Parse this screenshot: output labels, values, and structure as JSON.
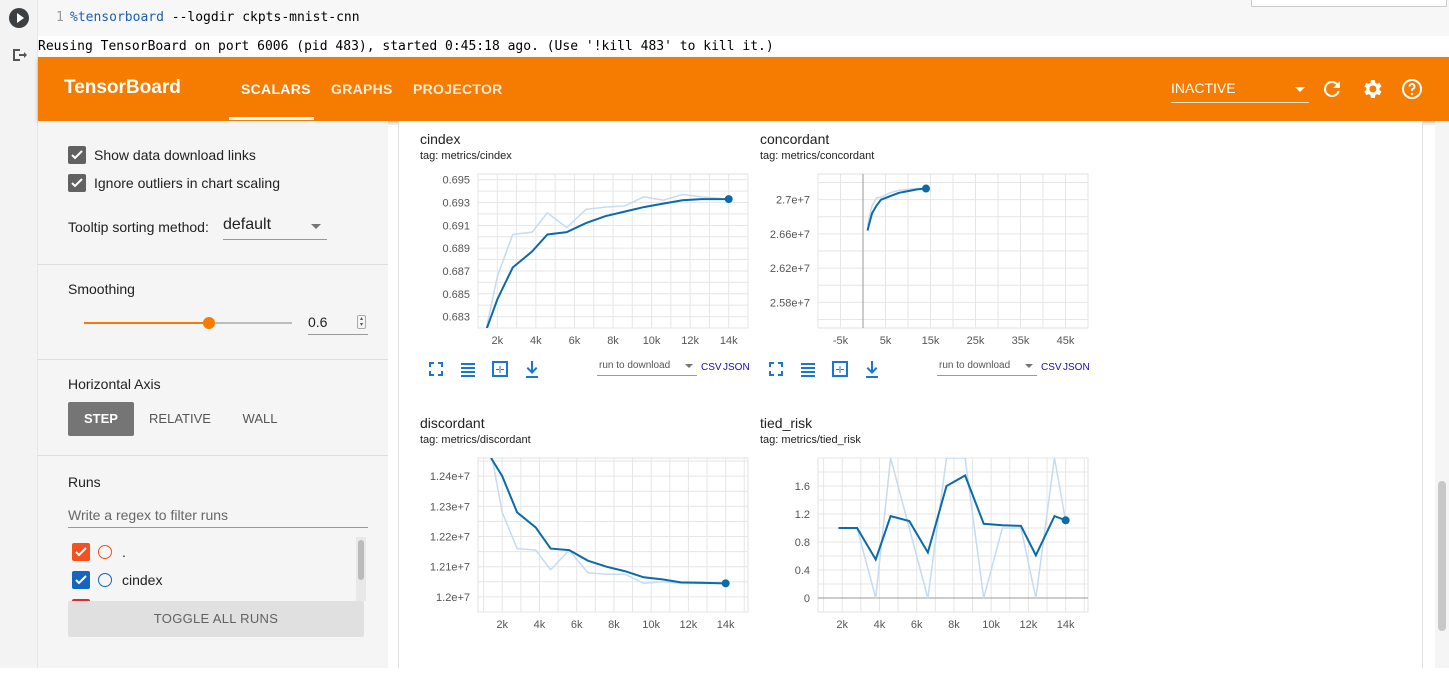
{
  "notebook": {
    "line_number": "1",
    "code_magic": "%tensorboard",
    "code_rest": " --logdir ckpts-mnist-cnn",
    "output": "Reusing TensorBoard on port 6006 (pid 483), started 0:45:18 ago. (Use '!kill 483' to kill it.)"
  },
  "header": {
    "brand": "TensorBoard",
    "tabs": [
      {
        "label": "SCALARS",
        "active": true
      },
      {
        "label": "GRAPHS",
        "active": false
      },
      {
        "label": "PROJECTOR",
        "active": false
      }
    ],
    "status_select": "INACTIVE",
    "icons": [
      "refresh-icon",
      "gear-icon",
      "help-icon"
    ]
  },
  "sidebar": {
    "show_download_links": {
      "label": "Show data download links",
      "checked": true
    },
    "ignore_outliers": {
      "label": "Ignore outliers in chart scaling",
      "checked": true
    },
    "tooltip_sorting": {
      "label": "Tooltip sorting method:",
      "value": "default"
    },
    "smoothing": {
      "heading": "Smoothing",
      "value": "0.6",
      "level": 0.6
    },
    "horizontal_axis": {
      "heading": "Horizontal Axis",
      "options": [
        "STEP",
        "RELATIVE",
        "WALL"
      ],
      "selected": "STEP"
    },
    "runs": {
      "heading": "Runs",
      "filter_placeholder": "Write a regex to filter runs",
      "items": [
        {
          "label": ".",
          "color": "#f4511e",
          "checked": true
        },
        {
          "label": "cindex",
          "color": "#1565c0",
          "checked": true
        },
        {
          "label": "",
          "color": "#d32f2f",
          "checked": true
        }
      ],
      "toggle_label": "TOGGLE ALL RUNS"
    }
  },
  "card_controls": {
    "download_select": "run to download",
    "csv": "CSV",
    "json": "JSON"
  },
  "chart_data": [
    {
      "type": "line",
      "title": "cindex",
      "tag": "tag: metrics/cindex",
      "xlim": [
        1000,
        15000
      ],
      "ylim": [
        0.682,
        0.6955
      ],
      "xticks": [
        2000,
        4000,
        6000,
        8000,
        10000,
        12000,
        14000
      ],
      "xtick_labels": [
        "2k",
        "4k",
        "6k",
        "8k",
        "10k",
        "12k",
        "14k"
      ],
      "yticks": [
        0.683,
        0.685,
        0.687,
        0.689,
        0.691,
        0.693,
        0.695
      ],
      "grid": true,
      "series": [
        {
          "role": "raw",
          "x": [
            1400,
            2000,
            2800,
            3800,
            4600,
            5600,
            6600,
            7600,
            8600,
            9600,
            10600,
            11600,
            12600,
            14000
          ],
          "y": [
            0.6817,
            0.6865,
            0.6902,
            0.6904,
            0.6921,
            0.6908,
            0.6924,
            0.6926,
            0.6927,
            0.6935,
            0.6932,
            0.6937,
            0.6935,
            0.6933
          ]
        },
        {
          "role": "smoothed",
          "x": [
            1400,
            2000,
            2800,
            3800,
            4600,
            5600,
            6600,
            7600,
            8600,
            9600,
            10600,
            11600,
            12600,
            14000
          ],
          "y": [
            0.6817,
            0.6845,
            0.6873,
            0.6887,
            0.6902,
            0.6904,
            0.6912,
            0.6918,
            0.6922,
            0.6926,
            0.6929,
            0.6932,
            0.6933,
            0.6933
          ]
        }
      ]
    },
    {
      "type": "line",
      "title": "concordant",
      "tag": "tag: metrics/concordant",
      "xlim": [
        -10000,
        50000
      ],
      "ylim": [
        25500000,
        27300000
      ],
      "xticks": [
        -5000,
        5000,
        15000,
        25000,
        35000,
        45000
      ],
      "xtick_labels": [
        "-5k",
        "5k",
        "15k",
        "25k",
        "35k",
        "45k"
      ],
      "yticks": [
        25800000,
        26200000,
        26600000,
        27000000
      ],
      "ytick_labels": [
        "2.58e+7",
        "2.62e+7",
        "2.66e+7",
        "2.7e+7"
      ],
      "zero_line": 0,
      "grid": true,
      "series": [
        {
          "role": "raw",
          "x": [
            1000,
            2000,
            3000,
            4000,
            6000,
            8000,
            10000,
            12000,
            14000
          ],
          "y": [
            26700000,
            26930000,
            27020000,
            27030000,
            27080000,
            27110000,
            27120000,
            27130000,
            27130000
          ]
        },
        {
          "role": "smoothed",
          "x": [
            1000,
            2000,
            3000,
            4000,
            6000,
            8000,
            10000,
            12000,
            14000
          ],
          "y": [
            26640000,
            26840000,
            26930000,
            27000000,
            27040000,
            27080000,
            27100000,
            27120000,
            27130000
          ]
        }
      ]
    },
    {
      "type": "line",
      "title": "discordant",
      "tag": "tag: metrics/discordant",
      "xlim": [
        700,
        15200
      ],
      "ylim": [
        11950000,
        12460000
      ],
      "xticks": [
        2000,
        4000,
        6000,
        8000,
        10000,
        12000,
        14000
      ],
      "xtick_labels": [
        "2k",
        "4k",
        "6k",
        "8k",
        "10k",
        "12k",
        "14k"
      ],
      "yticks": [
        12000000,
        12100000,
        12200000,
        12300000,
        12400000
      ],
      "ytick_labels": [
        "1.2e+7",
        "1.21e+7",
        "1.22e+7",
        "1.23e+7",
        "1.24e+7"
      ],
      "grid": true,
      "series": [
        {
          "role": "raw",
          "x": [
            1400,
            2000,
            2800,
            3800,
            4600,
            5600,
            6600,
            7600,
            8600,
            9600,
            10600,
            11600,
            12600,
            14000
          ],
          "y": [
            12480000,
            12280000,
            12160000,
            12155000,
            12090000,
            12155000,
            12080000,
            12075000,
            12075000,
            12045000,
            12050000,
            12045000,
            12045000,
            12045000
          ]
        },
        {
          "role": "smoothed",
          "x": [
            1400,
            2000,
            2800,
            3800,
            4600,
            5600,
            6600,
            7600,
            8600,
            9600,
            10600,
            11600,
            12600,
            14000
          ],
          "y": [
            12460000,
            12400000,
            12280000,
            12230000,
            12160000,
            12155000,
            12120000,
            12100000,
            12085000,
            12065000,
            12058000,
            12048000,
            12047000,
            12045000
          ]
        }
      ]
    },
    {
      "type": "line",
      "title": "tied_risk",
      "tag": "tag: metrics/tied_risk",
      "xlim": [
        700,
        15200
      ],
      "ylim": [
        -0.2,
        2.0
      ],
      "xticks": [
        2000,
        4000,
        6000,
        8000,
        10000,
        12000,
        14000
      ],
      "xtick_labels": [
        "2k",
        "4k",
        "6k",
        "8k",
        "10k",
        "12k",
        "14k"
      ],
      "yticks": [
        0,
        0.4,
        0.8,
        1.2,
        1.6
      ],
      "ytick_labels": [
        "0",
        "0.4",
        "0.8",
        "1.2",
        "1.6"
      ],
      "zero_line": 0,
      "grid": true,
      "series": [
        {
          "role": "raw",
          "x": [
            1800,
            2800,
            3800,
            4600,
            5600,
            6600,
            7600,
            8600,
            9600,
            10600,
            11600,
            12400,
            13400,
            14000
          ],
          "y": [
            1.0,
            1.0,
            0.0,
            2.0,
            1.0,
            0.0,
            2.0,
            2.0,
            0.0,
            1.0,
            1.0,
            0.0,
            2.0,
            1.1
          ]
        },
        {
          "role": "smoothed",
          "x": [
            1800,
            2800,
            3800,
            4600,
            5600,
            6600,
            7600,
            8600,
            9600,
            10600,
            11600,
            12400,
            13400,
            14000
          ],
          "y": [
            1.0,
            1.0,
            0.55,
            1.17,
            1.1,
            0.65,
            1.6,
            1.75,
            1.06,
            1.04,
            1.03,
            0.61,
            1.17,
            1.11
          ]
        }
      ]
    }
  ],
  "colors": {
    "accent": "#f57c00",
    "raw_line": "#c6dbef",
    "smoothed_line": "#0b6aa8"
  }
}
